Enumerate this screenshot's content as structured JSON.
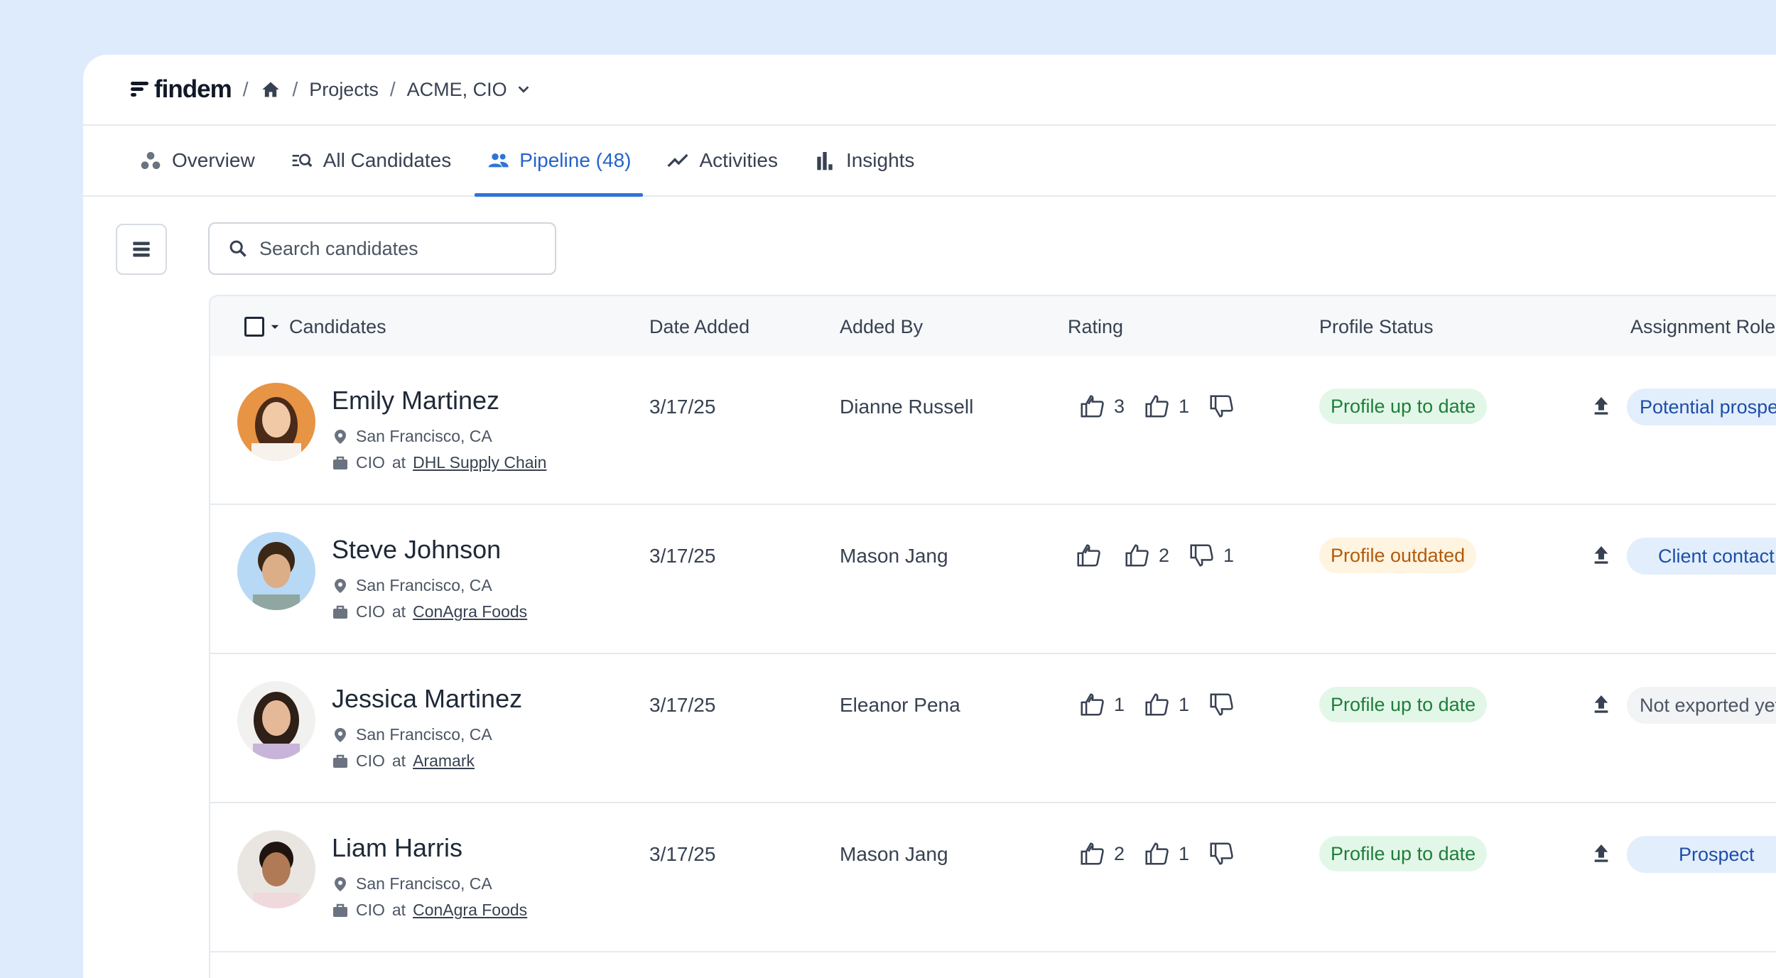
{
  "breadcrumb": {
    "logo": "findem",
    "sep": "/",
    "projects": "Projects",
    "project": "ACME, CIO"
  },
  "tabs": [
    {
      "label": "Overview",
      "icon": "overview-icon"
    },
    {
      "label": "All Candidates",
      "icon": "search-list-icon"
    },
    {
      "label": "Pipeline (48)",
      "icon": "people-icon",
      "active": true
    },
    {
      "label": "Activities",
      "icon": "trend-icon"
    },
    {
      "label": "Insights",
      "icon": "bar-chart-icon"
    }
  ],
  "search": {
    "placeholder": "Search candidates"
  },
  "table": {
    "headers": {
      "candidates": "Candidates",
      "date_added": "Date Added",
      "added_by": "Added By",
      "rating": "Rating",
      "profile_status": "Profile Status",
      "assignment_role": "Assignment Role"
    },
    "rows": [
      {
        "name": "Emily Martinez",
        "location": "San Francisco, CA",
        "title": "CIO",
        "at": "at",
        "company": "DHL Supply Chain",
        "date": "3/17/25",
        "added_by": "Dianne Russell",
        "strong_up": "3",
        "up": "1",
        "down": "",
        "status": "Profile up to date",
        "role": "Potential prospect"
      },
      {
        "name": "Steve Johnson",
        "location": "San Francisco, CA",
        "title": "CIO",
        "at": "at",
        "company": "ConAgra Foods",
        "date": "3/17/25",
        "added_by": "Mason Jang",
        "strong_up": "",
        "up": "2",
        "down": "1",
        "status": "Profile outdated",
        "role": "Client contact"
      },
      {
        "name": "Jessica Martinez",
        "location": "San Francisco, CA",
        "title": "CIO",
        "at": "at",
        "company": "Aramark",
        "date": "3/17/25",
        "added_by": "Eleanor Pena",
        "strong_up": "1",
        "up": "1",
        "down": "",
        "status": "Profile up to date",
        "role": "Not exported yet"
      },
      {
        "name": "Liam Harris",
        "location": "San Francisco, CA",
        "title": "CIO",
        "at": "at",
        "company": "ConAgra Foods",
        "date": "3/17/25",
        "added_by": "Mason Jang",
        "strong_up": "2",
        "up": "1",
        "down": "",
        "status": "Profile up to date",
        "role": "Prospect"
      }
    ]
  },
  "colors": {
    "background": "#deebfc",
    "accent": "#2f74d6",
    "status_ok_bg": "#e3f7e8",
    "status_outdated_bg": "#fff4e0"
  }
}
